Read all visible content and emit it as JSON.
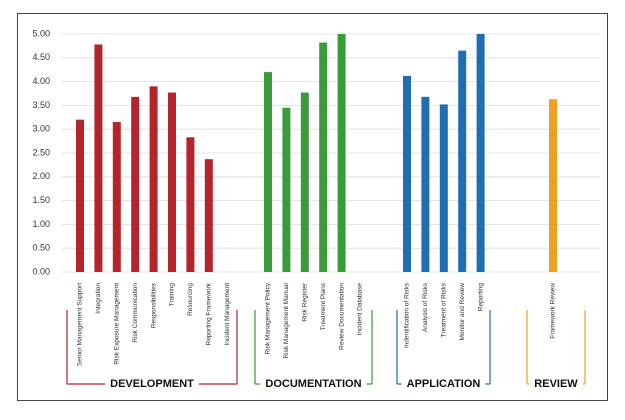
{
  "chart_data": {
    "type": "bar",
    "ylim": [
      0,
      5
    ],
    "yticks": [
      {
        "value": 0,
        "label": "0.00"
      },
      {
        "value": 0.5,
        "label": "0.50"
      },
      {
        "value": 1,
        "label": "1.00"
      },
      {
        "value": 1.5,
        "label": "1.50"
      },
      {
        "value": 2,
        "label": "2.00"
      },
      {
        "value": 2.5,
        "label": "2.50"
      },
      {
        "value": 3,
        "label": "3.00"
      },
      {
        "value": 3.5,
        "label": "3.50"
      },
      {
        "value": 4,
        "label": "4.00"
      },
      {
        "value": 4.5,
        "label": "4.50"
      },
      {
        "value": 5,
        "label": "5.00"
      }
    ],
    "grid": true,
    "groups": [
      {
        "name": "DEVELOPMENT",
        "color": "#b3242b",
        "categories": [
          "Senior Management Support",
          "Integration",
          "Risk Exposure Management",
          "Risk Communication",
          "Responsibilities",
          "Training",
          "Resourcing",
          "Reporting Framework",
          "Incident Management"
        ],
        "values": [
          3.2,
          4.78,
          3.15,
          3.68,
          3.9,
          3.77,
          2.83,
          2.37,
          null
        ]
      },
      {
        "name": "DOCUMENTATION",
        "color": "#3b9a3b",
        "categories": [
          "Risk Management Policy",
          "Risk Management Manual",
          "Risk Register",
          "Treatment Plans",
          "Review Documentation",
          "Incident Database"
        ],
        "values": [
          4.2,
          3.45,
          3.77,
          4.82,
          5.0,
          null
        ]
      },
      {
        "name": "APPLICATION",
        "color": "#1f6db3",
        "categories": [
          "Indentification of Risks",
          "Analysis of Risks",
          "Treatment of Risks",
          "Monitor and Review",
          "Reporting"
        ],
        "values": [
          4.12,
          3.68,
          3.52,
          4.65,
          5.0
        ]
      },
      {
        "name": "REVIEW",
        "color": "#f0a020",
        "categories": [
          "Framework Review"
        ],
        "values": [
          3.63
        ]
      }
    ]
  }
}
